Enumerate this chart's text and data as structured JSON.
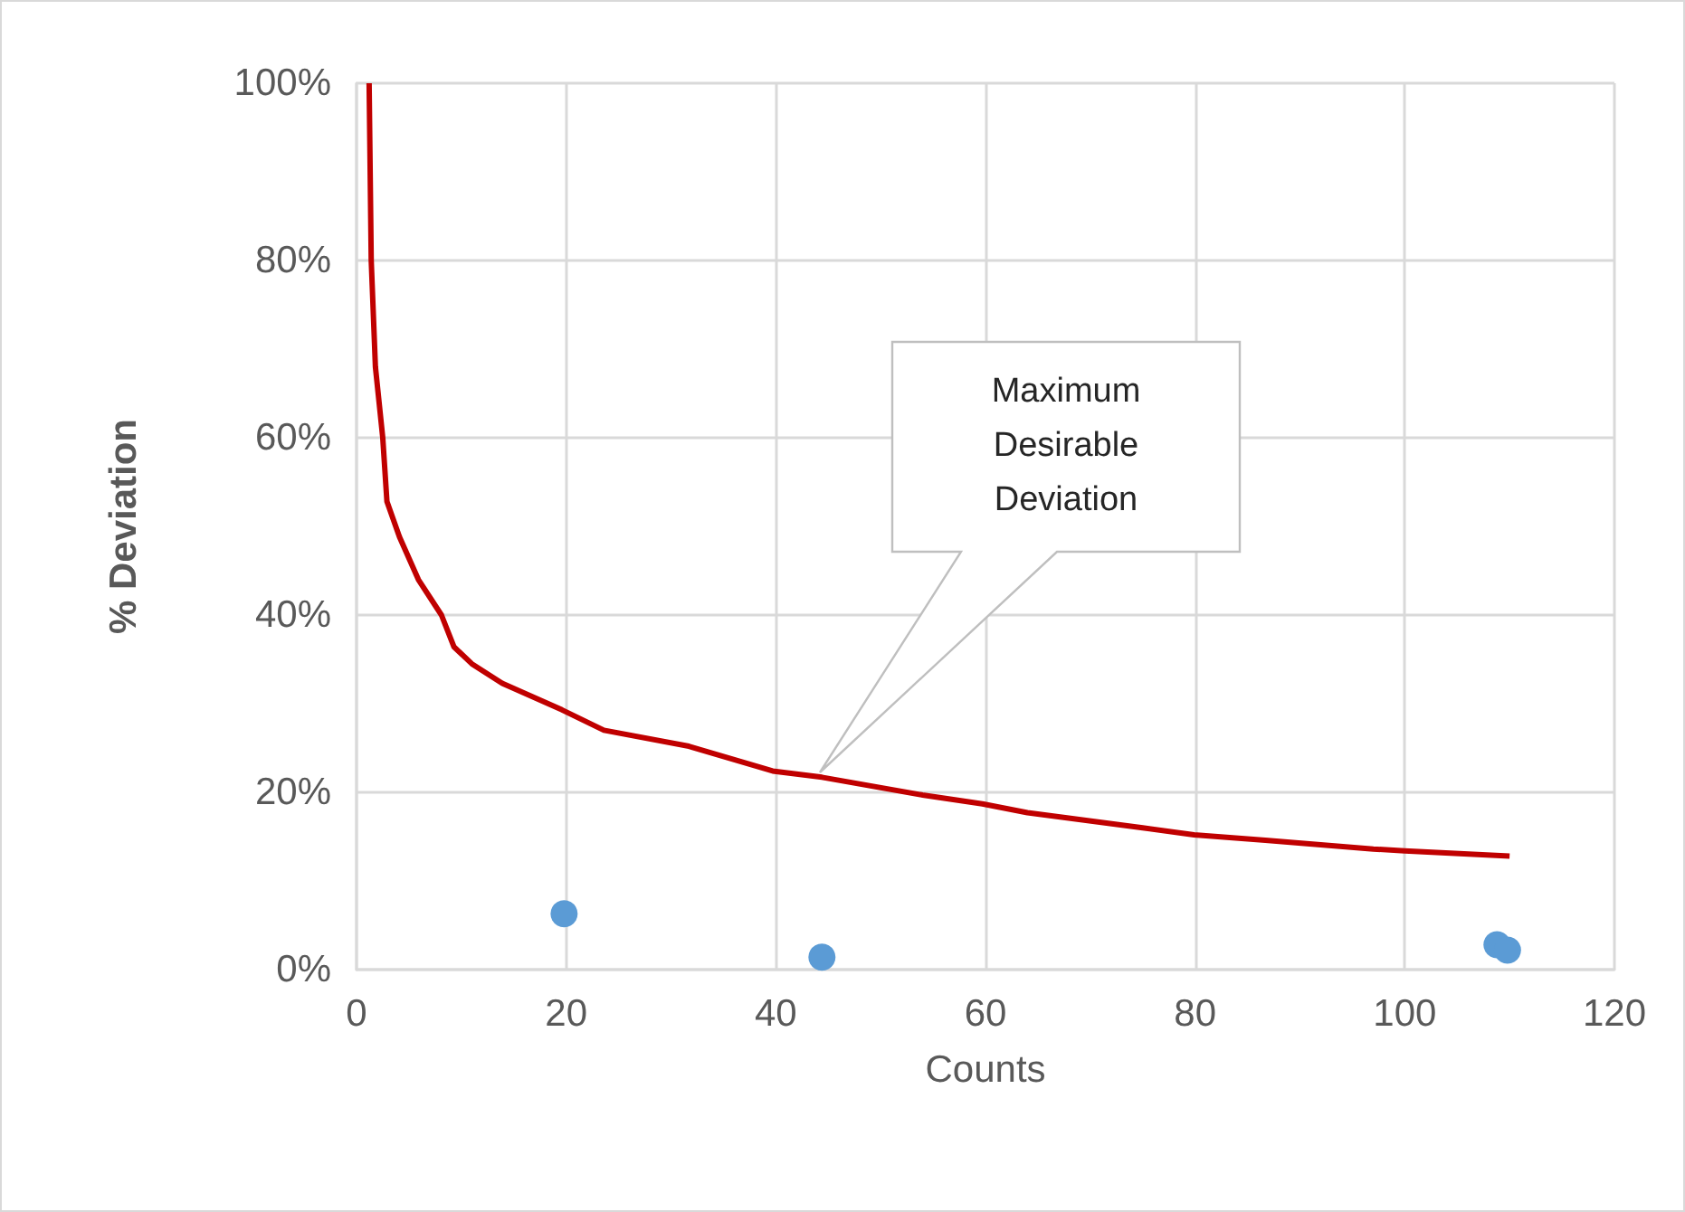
{
  "chart_data": {
    "type": "scatter",
    "xlabel": "Counts",
    "ylabel": "% Deviation",
    "xlim": [
      0,
      120
    ],
    "xticks": [
      0,
      20,
      40,
      60,
      80,
      100,
      120
    ],
    "ylim": [
      0,
      100
    ],
    "yticks": [
      {
        "value": 0,
        "label": "0%"
      },
      {
        "value": 20,
        "label": "20%"
      },
      {
        "value": 40,
        "label": "40%"
      },
      {
        "value": 60,
        "label": "60%"
      },
      {
        "value": 80,
        "label": "80%"
      },
      {
        "value": 100,
        "label": "100%"
      }
    ],
    "grid": true,
    "marker": "circle",
    "series": [
      {
        "type": "line",
        "color": "#c00000",
        "marker": "none",
        "x": [
          1.2,
          1.4,
          1.8,
          2.5,
          2.9,
          4.1,
          5.9,
          8.1,
          9.3,
          11,
          13.9,
          19.6,
          23.6,
          31.7,
          39.7,
          44.4,
          54,
          59.7,
          64,
          75,
          79.9,
          86.7,
          97,
          100,
          110
        ],
        "values": [
          100,
          80,
          68,
          60,
          52.8,
          48.8,
          44,
          40,
          36.4,
          34.5,
          32.3,
          29.3,
          27,
          25.2,
          22.4,
          21.7,
          19.7,
          18.7,
          17.7,
          16,
          15.2,
          14.6,
          13.6,
          13.4,
          12.8
        ]
      },
      {
        "color": "#5b9bd5",
        "x": [
          19.8,
          44.4,
          108.8,
          109.8
        ],
        "values": [
          6.3,
          1.4,
          2.8,
          2.2
        ]
      }
    ],
    "annotations": [
      "Maximum\nDesirable\nDeviation"
    ]
  }
}
